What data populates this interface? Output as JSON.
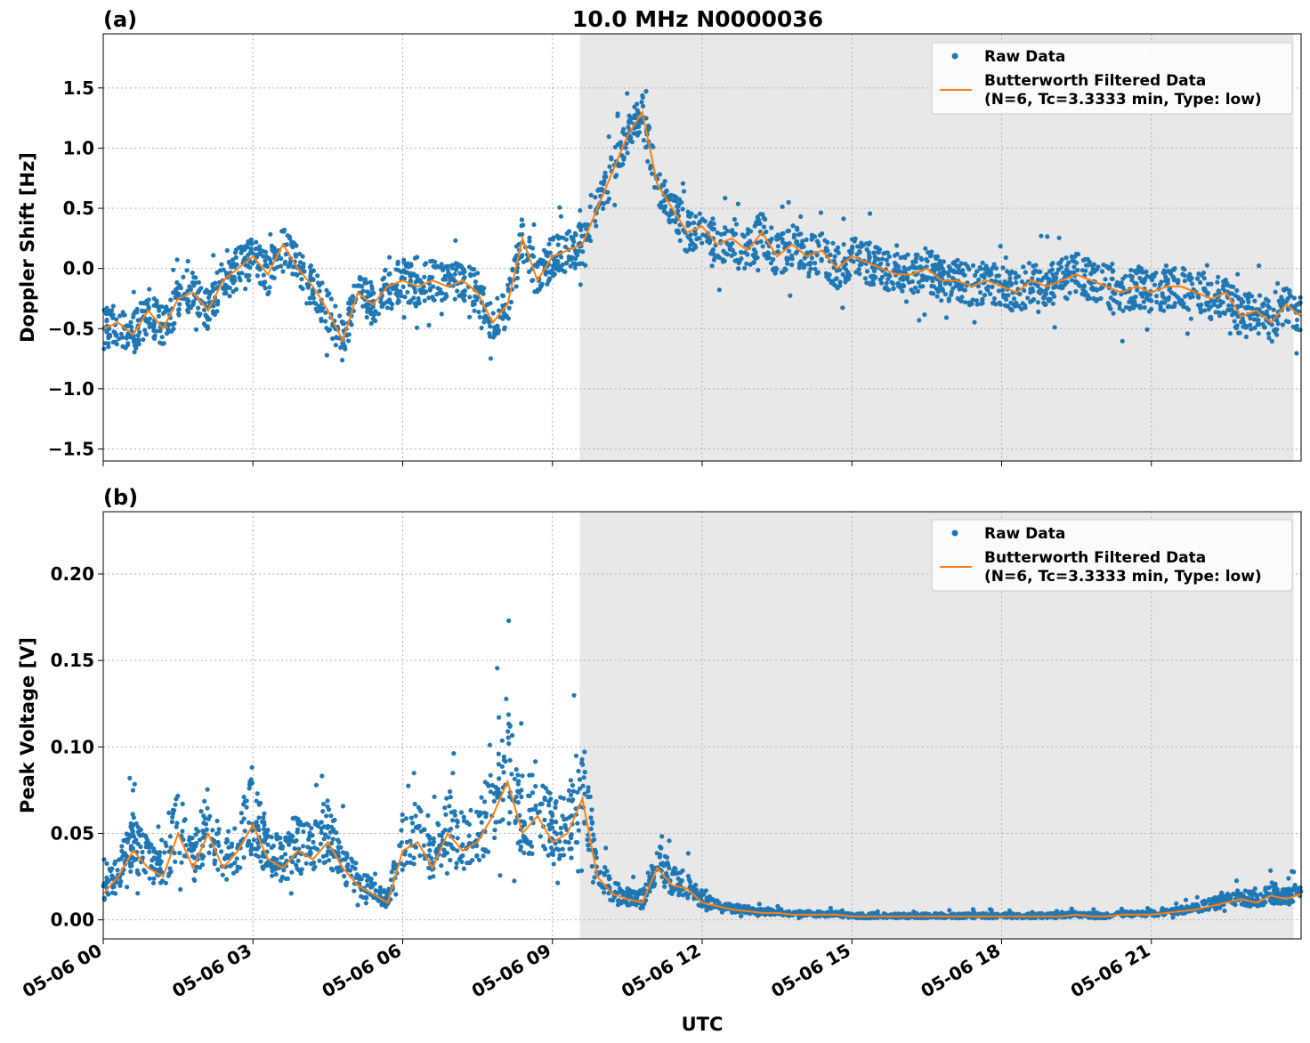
{
  "title": "10.0 MHz N0000036",
  "colors": {
    "raw": "#1f77b4",
    "filtered": "#ff7f0e",
    "shade": "#e8e8e8",
    "grid": "#b0b0b0"
  },
  "x_axis": {
    "label": "UTC",
    "ticks": [
      {
        "hour": 0,
        "label": "05-06 00"
      },
      {
        "hour": 3,
        "label": "05-06 03"
      },
      {
        "hour": 6,
        "label": "05-06 06"
      },
      {
        "hour": 9,
        "label": "05-06 09"
      },
      {
        "hour": 12,
        "label": "05-06 12"
      },
      {
        "hour": 15,
        "label": "05-06 15"
      },
      {
        "hour": 18,
        "label": "05-06 18"
      },
      {
        "hour": 21,
        "label": "05-06 21"
      }
    ],
    "xlim_hours": [
      0,
      24
    ],
    "shaded_region_hours": [
      9.55,
      23.85
    ]
  },
  "legend": {
    "raw_label": "Raw Data",
    "filtered_label_line1": "Butterworth Filtered Data",
    "filtered_label_line2": "(N=6, Tc=3.3333 min, Type: low)"
  },
  "chart_data": [
    {
      "type": "scatter",
      "panel_label": "(a)",
      "ylabel": "Doppler Shift [Hz]",
      "ylim": [
        -1.6,
        1.95
      ],
      "yticks": [
        -1.5,
        -1.0,
        -0.5,
        0.0,
        0.5,
        1.0,
        1.5
      ],
      "ytick_labels": [
        "−1.5",
        "−1.0",
        "−0.5",
        "0.0",
        "0.5",
        "1.0",
        "1.5"
      ],
      "grid": true,
      "legend_position": "top-right",
      "series": [
        {
          "name": "Butterworth Filtered Data (N=6, Tc=3.3333 min, Type: low)",
          "hours": [
            0,
            0.3,
            0.6,
            0.9,
            1.2,
            1.5,
            1.8,
            2.1,
            2.4,
            2.7,
            3.0,
            3.3,
            3.6,
            3.9,
            4.2,
            4.5,
            4.8,
            5.1,
            5.4,
            5.7,
            6.0,
            6.3,
            6.6,
            6.9,
            7.2,
            7.5,
            7.8,
            8.1,
            8.4,
            8.7,
            9.0,
            9.3,
            9.6,
            9.9,
            10.2,
            10.5,
            10.8,
            11.1,
            11.4,
            11.7,
            12.0,
            12.3,
            12.6,
            12.9,
            13.2,
            13.5,
            13.8,
            14.1,
            14.4,
            14.7,
            15.0,
            15.3,
            15.6,
            15.9,
            16.2,
            16.5,
            16.8,
            17.1,
            17.4,
            17.7,
            18.0,
            18.3,
            18.6,
            18.9,
            19.2,
            19.5,
            19.8,
            20.1,
            20.4,
            20.7,
            21.0,
            21.3,
            21.6,
            21.9,
            22.2,
            22.5,
            22.8,
            23.1,
            23.4,
            23.7,
            24.0
          ],
          "values": [
            -0.5,
            -0.45,
            -0.55,
            -0.35,
            -0.5,
            -0.25,
            -0.2,
            -0.35,
            -0.1,
            0.0,
            0.1,
            -0.05,
            0.2,
            0.0,
            -0.15,
            -0.35,
            -0.6,
            -0.2,
            -0.3,
            -0.15,
            -0.1,
            -0.15,
            -0.1,
            -0.15,
            -0.1,
            -0.2,
            -0.45,
            -0.3,
            0.25,
            -0.1,
            0.1,
            0.15,
            0.2,
            0.5,
            0.8,
            1.1,
            1.3,
            0.7,
            0.5,
            0.3,
            0.35,
            0.2,
            0.25,
            0.15,
            0.3,
            0.1,
            0.2,
            0.1,
            0.15,
            0.0,
            0.1,
            0.05,
            0.0,
            -0.05,
            -0.05,
            0.0,
            -0.1,
            -0.1,
            -0.15,
            -0.1,
            -0.15,
            -0.2,
            -0.1,
            -0.15,
            -0.1,
            -0.05,
            -0.1,
            -0.15,
            -0.2,
            -0.15,
            -0.2,
            -0.15,
            -0.15,
            -0.2,
            -0.25,
            -0.2,
            -0.4,
            -0.35,
            -0.45,
            -0.3,
            -0.4
          ]
        },
        {
          "name": "Raw Data",
          "spread": [
            0.35,
            0.45
          ]
        }
      ]
    },
    {
      "type": "scatter",
      "panel_label": "(b)",
      "ylabel": "Peak Voltage [V]",
      "ylim": [
        -0.011,
        0.236
      ],
      "yticks": [
        0.0,
        0.05,
        0.1,
        0.15,
        0.2
      ],
      "ytick_labels": [
        "0.00",
        "0.05",
        "0.10",
        "0.15",
        "0.20"
      ],
      "grid": true,
      "legend_position": "top-right",
      "series": [
        {
          "name": "Butterworth Filtered Data (N=6, Tc=3.3333 min, Type: low)",
          "hours": [
            0,
            0.3,
            0.6,
            0.9,
            1.2,
            1.5,
            1.8,
            2.1,
            2.4,
            2.7,
            3.0,
            3.3,
            3.6,
            3.9,
            4.2,
            4.5,
            4.8,
            5.1,
            5.4,
            5.7,
            6.0,
            6.3,
            6.6,
            6.9,
            7.2,
            7.5,
            7.8,
            8.1,
            8.4,
            8.7,
            9.0,
            9.3,
            9.6,
            9.9,
            10.2,
            10.5,
            10.8,
            11.1,
            11.4,
            11.7,
            12.0,
            12.3,
            12.6,
            12.9,
            13.2,
            13.5,
            13.8,
            14.1,
            14.4,
            14.7,
            15.0,
            15.3,
            15.6,
            15.9,
            16.2,
            16.5,
            16.8,
            17.1,
            17.4,
            17.7,
            18.0,
            18.3,
            18.6,
            18.9,
            19.2,
            19.5,
            19.8,
            20.1,
            20.4,
            20.7,
            21.0,
            21.3,
            21.6,
            21.9,
            22.2,
            22.5,
            22.8,
            23.1,
            23.4,
            23.7,
            24.0
          ],
          "values": [
            0.015,
            0.025,
            0.04,
            0.03,
            0.025,
            0.05,
            0.03,
            0.05,
            0.03,
            0.04,
            0.055,
            0.035,
            0.03,
            0.04,
            0.035,
            0.045,
            0.03,
            0.02,
            0.015,
            0.01,
            0.04,
            0.045,
            0.03,
            0.05,
            0.04,
            0.045,
            0.06,
            0.08,
            0.05,
            0.06,
            0.045,
            0.05,
            0.07,
            0.025,
            0.015,
            0.012,
            0.01,
            0.03,
            0.02,
            0.018,
            0.01,
            0.008,
            0.006,
            0.005,
            0.004,
            0.004,
            0.003,
            0.003,
            0.003,
            0.003,
            0.002,
            0.002,
            0.002,
            0.002,
            0.002,
            0.002,
            0.002,
            0.002,
            0.002,
            0.002,
            0.002,
            0.002,
            0.002,
            0.002,
            0.002,
            0.003,
            0.002,
            0.002,
            0.003,
            0.003,
            0.003,
            0.004,
            0.005,
            0.006,
            0.008,
            0.01,
            0.012,
            0.01,
            0.014,
            0.012,
            0.015
          ]
        },
        {
          "name": "Raw Data",
          "spread_relative": 0.6
        }
      ]
    }
  ]
}
